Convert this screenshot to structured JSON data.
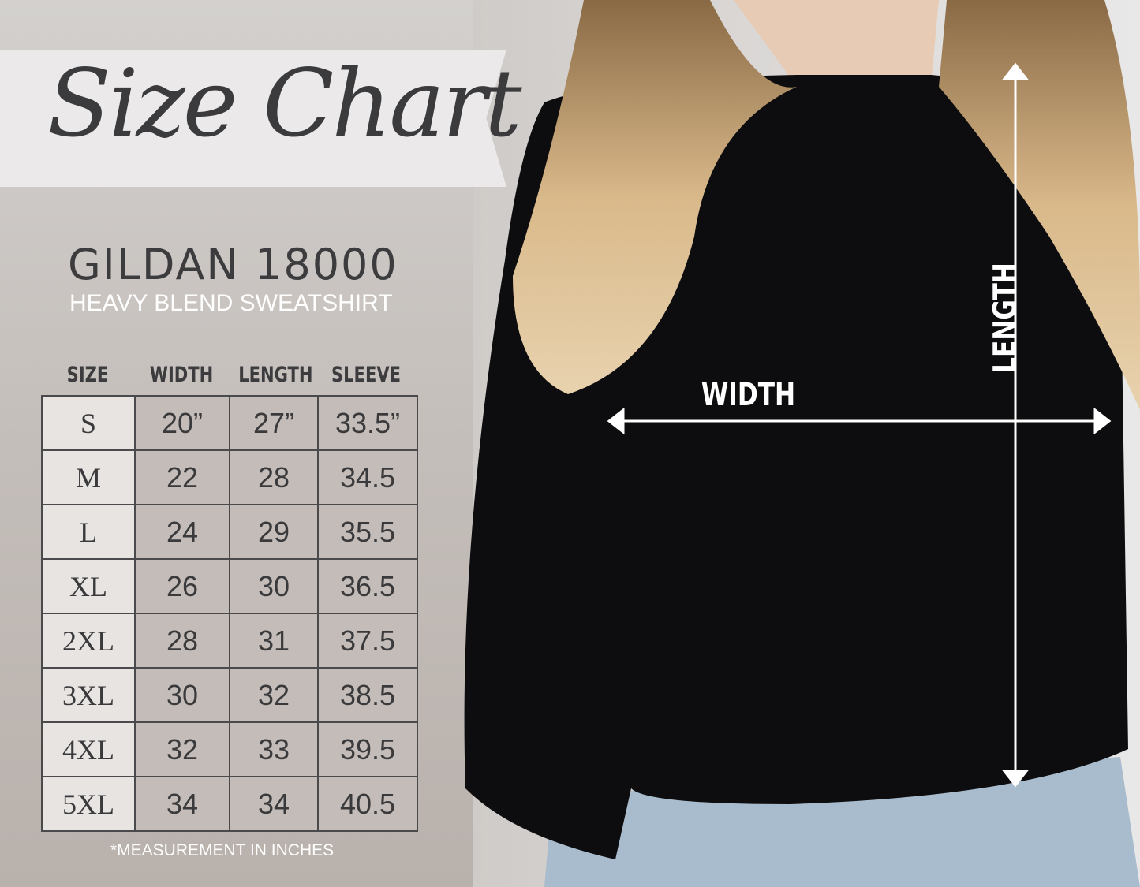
{
  "banner": {
    "title": "Size Chart"
  },
  "product": {
    "brand": "GILDAN 18000",
    "subtitle": "HEAVY BLEND SWEATSHIRT"
  },
  "table": {
    "headers": [
      "SIZE",
      "WIDTH",
      "LENGTH",
      "SLEEVE"
    ],
    "rows": [
      [
        "S",
        "20”",
        "27”",
        "33.5”"
      ],
      [
        "M",
        "22",
        "28",
        "34.5"
      ],
      [
        "L",
        "24",
        "29",
        "35.5"
      ],
      [
        "XL",
        "26",
        "30",
        "36.5"
      ],
      [
        "2XL",
        "28",
        "31",
        "37.5"
      ],
      [
        "3XL",
        "30",
        "32",
        "38.5"
      ],
      [
        "4XL",
        "32",
        "33",
        "39.5"
      ],
      [
        "5XL",
        "34",
        "34",
        "40.5"
      ]
    ]
  },
  "footnote": "*MEASUREMENT IN INCHES",
  "diagram": {
    "width_label": "WIDTH",
    "length_label": "LENGTH"
  },
  "colors": {
    "sweatshirt": "#0d0d0f",
    "text_dark": "#3c3c3e",
    "arrow": "#ffffff"
  }
}
